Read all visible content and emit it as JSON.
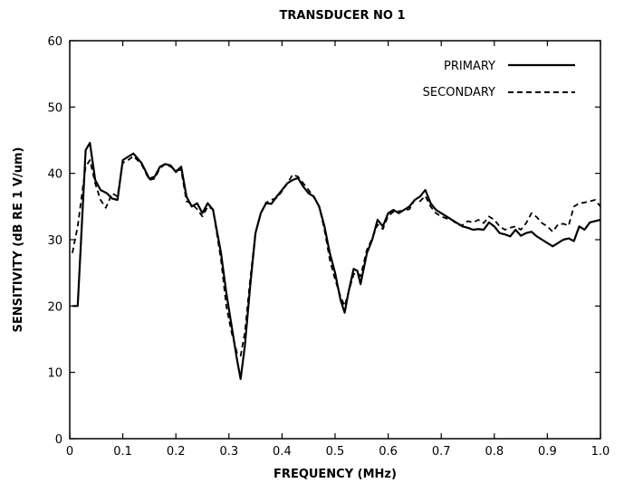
{
  "chart_data": {
    "type": "line",
    "title": "TRANSDUCER NO 1",
    "xlabel": "FREQUENCY (MHz)",
    "ylabel": "SENSITIVITY (dB RE 1 V/um)",
    "xlim": [
      0,
      1.0
    ],
    "ylim": [
      0,
      60
    ],
    "x_ticks": [
      "0",
      "0.1",
      "0.2",
      "0.3",
      "0.4",
      "0.5",
      "0.6",
      "0.7",
      "0.8",
      "0.9",
      "1.0"
    ],
    "y_ticks": [
      "0",
      "10",
      "20",
      "30",
      "40",
      "50",
      "60"
    ],
    "grid": false,
    "legend": "top-right",
    "series": [
      {
        "name": "PRIMARY",
        "style": "solid",
        "color": "#000000",
        "points": [
          [
            0.005,
            20
          ],
          [
            0.015,
            20
          ],
          [
            0.03,
            43.5
          ],
          [
            0.038,
            44.6
          ],
          [
            0.048,
            39
          ],
          [
            0.058,
            37.5
          ],
          [
            0.07,
            37
          ],
          [
            0.08,
            36.2
          ],
          [
            0.09,
            36
          ],
          [
            0.1,
            42
          ],
          [
            0.11,
            42.5
          ],
          [
            0.12,
            43
          ],
          [
            0.135,
            41.6
          ],
          [
            0.15,
            39.2
          ],
          [
            0.16,
            39.5
          ],
          [
            0.17,
            41
          ],
          [
            0.18,
            41.4
          ],
          [
            0.19,
            41.2
          ],
          [
            0.2,
            40.2
          ],
          [
            0.21,
            41
          ],
          [
            0.22,
            36.5
          ],
          [
            0.23,
            35
          ],
          [
            0.24,
            35.5
          ],
          [
            0.25,
            34
          ],
          [
            0.26,
            35.5
          ],
          [
            0.27,
            34.5
          ],
          [
            0.285,
            28
          ],
          [
            0.295,
            22
          ],
          [
            0.305,
            17
          ],
          [
            0.315,
            12
          ],
          [
            0.322,
            9
          ],
          [
            0.33,
            14
          ],
          [
            0.34,
            23
          ],
          [
            0.35,
            31
          ],
          [
            0.36,
            34
          ],
          [
            0.37,
            35.5
          ],
          [
            0.38,
            35.4
          ],
          [
            0.39,
            36.5
          ],
          [
            0.4,
            37.5
          ],
          [
            0.41,
            38.5
          ],
          [
            0.42,
            39
          ],
          [
            0.43,
            39.3
          ],
          [
            0.44,
            38
          ],
          [
            0.45,
            37
          ],
          [
            0.46,
            36.5
          ],
          [
            0.47,
            35
          ],
          [
            0.48,
            32
          ],
          [
            0.49,
            28
          ],
          [
            0.5,
            25
          ],
          [
            0.51,
            21
          ],
          [
            0.518,
            19
          ],
          [
            0.525,
            22
          ],
          [
            0.535,
            25.6
          ],
          [
            0.542,
            25.3
          ],
          [
            0.548,
            23.3
          ],
          [
            0.56,
            28
          ],
          [
            0.57,
            30
          ],
          [
            0.58,
            33
          ],
          [
            0.59,
            32
          ],
          [
            0.6,
            34
          ],
          [
            0.61,
            34.5
          ],
          [
            0.62,
            34
          ],
          [
            0.63,
            34.5
          ],
          [
            0.64,
            35
          ],
          [
            0.65,
            36
          ],
          [
            0.66,
            36.5
          ],
          [
            0.67,
            37.5
          ],
          [
            0.68,
            35.5
          ],
          [
            0.69,
            34.5
          ],
          [
            0.7,
            34
          ],
          [
            0.71,
            33.5
          ],
          [
            0.72,
            33
          ],
          [
            0.73,
            32.5
          ],
          [
            0.74,
            32
          ],
          [
            0.75,
            31.8
          ],
          [
            0.76,
            31.5
          ],
          [
            0.77,
            31.6
          ],
          [
            0.78,
            31.5
          ],
          [
            0.79,
            32.6
          ],
          [
            0.8,
            32
          ],
          [
            0.81,
            31
          ],
          [
            0.82,
            30.8
          ],
          [
            0.83,
            30.5
          ],
          [
            0.84,
            31.5
          ],
          [
            0.85,
            30.6
          ],
          [
            0.86,
            31
          ],
          [
            0.87,
            31.2
          ],
          [
            0.88,
            30.5
          ],
          [
            0.89,
            30
          ],
          [
            0.9,
            29.5
          ],
          [
            0.91,
            29
          ],
          [
            0.92,
            29.5
          ],
          [
            0.93,
            30
          ],
          [
            0.94,
            30.2
          ],
          [
            0.95,
            29.8
          ],
          [
            0.96,
            32
          ],
          [
            0.97,
            31.5
          ],
          [
            0.98,
            32.6
          ],
          [
            0.99,
            32.8
          ],
          [
            1.0,
            33
          ]
        ]
      },
      {
        "name": "SECONDARY",
        "style": "dashed",
        "color": "#000000",
        "points": [
          [
            0.005,
            28
          ],
          [
            0.015,
            32
          ],
          [
            0.03,
            41
          ],
          [
            0.038,
            42
          ],
          [
            0.048,
            38.5
          ],
          [
            0.058,
            36
          ],
          [
            0.068,
            34.8
          ],
          [
            0.08,
            37
          ],
          [
            0.09,
            36.5
          ],
          [
            0.1,
            41.6
          ],
          [
            0.11,
            42
          ],
          [
            0.12,
            42.6
          ],
          [
            0.135,
            41.4
          ],
          [
            0.15,
            39
          ],
          [
            0.16,
            39.2
          ],
          [
            0.17,
            40.8
          ],
          [
            0.18,
            41.4
          ],
          [
            0.19,
            41
          ],
          [
            0.2,
            40.5
          ],
          [
            0.21,
            40.5
          ],
          [
            0.22,
            35.8
          ],
          [
            0.23,
            35.4
          ],
          [
            0.24,
            34.6
          ],
          [
            0.25,
            33.5
          ],
          [
            0.26,
            35
          ],
          [
            0.27,
            34.6
          ],
          [
            0.285,
            27
          ],
          [
            0.295,
            20
          ],
          [
            0.305,
            16
          ],
          [
            0.315,
            13
          ],
          [
            0.322,
            12.5
          ],
          [
            0.33,
            16
          ],
          [
            0.34,
            24
          ],
          [
            0.35,
            31
          ],
          [
            0.36,
            34
          ],
          [
            0.37,
            35.6
          ],
          [
            0.38,
            36
          ],
          [
            0.39,
            36.3
          ],
          [
            0.4,
            37.3
          ],
          [
            0.41,
            38.5
          ],
          [
            0.42,
            39.8
          ],
          [
            0.43,
            39.5
          ],
          [
            0.44,
            38.5
          ],
          [
            0.45,
            37.5
          ],
          [
            0.46,
            36.4
          ],
          [
            0.47,
            35
          ],
          [
            0.48,
            31.5
          ],
          [
            0.49,
            27
          ],
          [
            0.5,
            24
          ],
          [
            0.51,
            21.5
          ],
          [
            0.518,
            20
          ],
          [
            0.525,
            22
          ],
          [
            0.535,
            24.8
          ],
          [
            0.542,
            25
          ],
          [
            0.548,
            24.5
          ],
          [
            0.56,
            28.5
          ],
          [
            0.57,
            30.2
          ],
          [
            0.58,
            32.3
          ],
          [
            0.59,
            31.6
          ],
          [
            0.6,
            33.6
          ],
          [
            0.61,
            34.2
          ],
          [
            0.62,
            34.3
          ],
          [
            0.63,
            34.4
          ],
          [
            0.64,
            34.6
          ],
          [
            0.65,
            36
          ],
          [
            0.66,
            35.8
          ],
          [
            0.67,
            36.6
          ],
          [
            0.68,
            35
          ],
          [
            0.69,
            34
          ],
          [
            0.7,
            33.5
          ],
          [
            0.71,
            33.2
          ],
          [
            0.72,
            33
          ],
          [
            0.73,
            32.3
          ],
          [
            0.74,
            32.2
          ],
          [
            0.75,
            32.8
          ],
          [
            0.76,
            32.6
          ],
          [
            0.77,
            33
          ],
          [
            0.78,
            32.5
          ],
          [
            0.79,
            33.5
          ],
          [
            0.8,
            33
          ],
          [
            0.81,
            32
          ],
          [
            0.82,
            31.5
          ],
          [
            0.83,
            31.8
          ],
          [
            0.84,
            32
          ],
          [
            0.85,
            31.5
          ],
          [
            0.86,
            32.5
          ],
          [
            0.87,
            34
          ],
          [
            0.88,
            33.4
          ],
          [
            0.89,
            32.5
          ],
          [
            0.9,
            32
          ],
          [
            0.91,
            31.2
          ],
          [
            0.92,
            32.3
          ],
          [
            0.93,
            32.4
          ],
          [
            0.94,
            32.1
          ],
          [
            0.95,
            35
          ],
          [
            0.96,
            35.5
          ],
          [
            0.97,
            35.6
          ],
          [
            0.98,
            35.8
          ],
          [
            0.99,
            36
          ],
          [
            1.0,
            35
          ]
        ]
      }
    ]
  }
}
